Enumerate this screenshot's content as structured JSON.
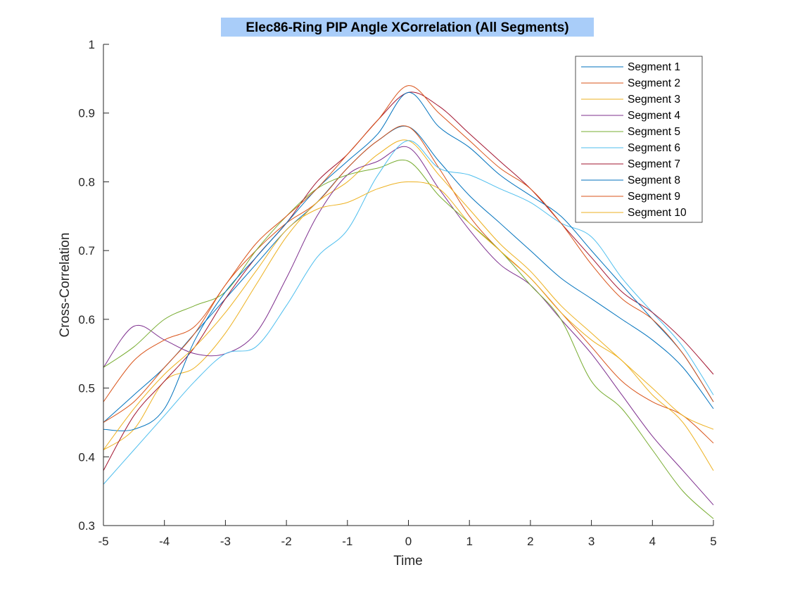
{
  "chart_data": {
    "type": "line",
    "title": "Elec86-Ring PIP Angle XCorrelation (All Segments)",
    "title_highlight_color": "#a9cdf9",
    "xlabel": "Time",
    "ylabel": "Cross-Correlation",
    "xlim": [
      -5,
      5
    ],
    "ylim": [
      0.3,
      1
    ],
    "xticks": [
      -5,
      -4,
      -3,
      -2,
      -1,
      0,
      1,
      2,
      3,
      4,
      5
    ],
    "yticks": [
      0.3,
      0.4,
      0.5,
      0.6,
      0.7,
      0.8,
      0.9,
      1
    ],
    "xtick_labels": [
      "-5",
      "-4",
      "-3",
      "-2",
      "-1",
      "0",
      "1",
      "2",
      "3",
      "4",
      "5"
    ],
    "ytick_labels": [
      "0.3",
      "0.4",
      "0.5",
      "0.6",
      "0.7",
      "0.8",
      "0.9",
      "1"
    ],
    "grid": false,
    "legend_position": "top-right",
    "x": [
      -5,
      -4.5,
      -4,
      -3.5,
      -3,
      -2.5,
      -2,
      -1.5,
      -1,
      -0.5,
      0,
      0.5,
      1,
      1.5,
      2,
      2.5,
      3,
      3.5,
      4,
      4.5,
      5
    ],
    "series": [
      {
        "name": "Segment 1",
        "color": "#0072bd",
        "values": [
          0.45,
          0.49,
          0.53,
          0.58,
          0.63,
          0.68,
          0.73,
          0.77,
          0.82,
          0.86,
          0.88,
          0.83,
          0.78,
          0.74,
          0.7,
          0.66,
          0.63,
          0.6,
          0.57,
          0.53,
          0.47
        ]
      },
      {
        "name": "Segment 2",
        "color": "#d95319",
        "values": [
          0.45,
          0.48,
          0.53,
          0.58,
          0.65,
          0.7,
          0.74,
          0.77,
          0.82,
          0.86,
          0.88,
          0.82,
          0.75,
          0.7,
          0.66,
          0.61,
          0.56,
          0.51,
          0.48,
          0.46,
          0.42
        ]
      },
      {
        "name": "Segment 3",
        "color": "#edb120",
        "values": [
          0.41,
          0.44,
          0.51,
          0.53,
          0.58,
          0.65,
          0.72,
          0.77,
          0.8,
          0.84,
          0.86,
          0.81,
          0.76,
          0.71,
          0.67,
          0.62,
          0.58,
          0.54,
          0.5,
          0.46,
          0.44
        ]
      },
      {
        "name": "Segment 4",
        "color": "#7e2f8e",
        "values": [
          0.53,
          0.59,
          0.57,
          0.55,
          0.55,
          0.58,
          0.66,
          0.75,
          0.81,
          0.83,
          0.85,
          0.79,
          0.73,
          0.68,
          0.65,
          0.6,
          0.55,
          0.49,
          0.43,
          0.38,
          0.33
        ]
      },
      {
        "name": "Segment 5",
        "color": "#77ac30",
        "values": [
          0.53,
          0.56,
          0.6,
          0.62,
          0.64,
          0.7,
          0.75,
          0.79,
          0.81,
          0.82,
          0.83,
          0.78,
          0.74,
          0.7,
          0.65,
          0.6,
          0.51,
          0.47,
          0.41,
          0.35,
          0.31
        ]
      },
      {
        "name": "Segment 6",
        "color": "#4dbeee",
        "values": [
          0.36,
          0.41,
          0.46,
          0.51,
          0.55,
          0.56,
          0.62,
          0.69,
          0.73,
          0.81,
          0.86,
          0.82,
          0.81,
          0.79,
          0.77,
          0.74,
          0.72,
          0.66,
          0.61,
          0.56,
          0.49
        ]
      },
      {
        "name": "Segment 7",
        "color": "#a2142f",
        "values": [
          0.38,
          0.46,
          0.51,
          0.56,
          0.63,
          0.69,
          0.74,
          0.8,
          0.84,
          0.89,
          0.93,
          0.91,
          0.87,
          0.83,
          0.79,
          0.74,
          0.69,
          0.64,
          0.61,
          0.57,
          0.52
        ]
      },
      {
        "name": "Segment 8",
        "color": "#0072bd",
        "values": [
          0.44,
          0.44,
          0.47,
          0.57,
          0.64,
          0.69,
          0.74,
          0.79,
          0.83,
          0.87,
          0.93,
          0.88,
          0.85,
          0.81,
          0.78,
          0.75,
          0.7,
          0.65,
          0.6,
          0.55,
          0.48
        ]
      },
      {
        "name": "Segment 9",
        "color": "#d95319",
        "values": [
          0.48,
          0.54,
          0.57,
          0.59,
          0.65,
          0.71,
          0.75,
          0.79,
          0.84,
          0.89,
          0.94,
          0.9,
          0.86,
          0.82,
          0.79,
          0.74,
          0.68,
          0.63,
          0.6,
          0.55,
          0.48
        ]
      },
      {
        "name": "Segment 10",
        "color": "#edb120",
        "values": [
          0.41,
          0.47,
          0.52,
          0.56,
          0.61,
          0.67,
          0.73,
          0.76,
          0.77,
          0.79,
          0.8,
          0.79,
          0.74,
          0.7,
          0.66,
          0.61,
          0.57,
          0.54,
          0.49,
          0.45,
          0.38
        ]
      }
    ]
  }
}
